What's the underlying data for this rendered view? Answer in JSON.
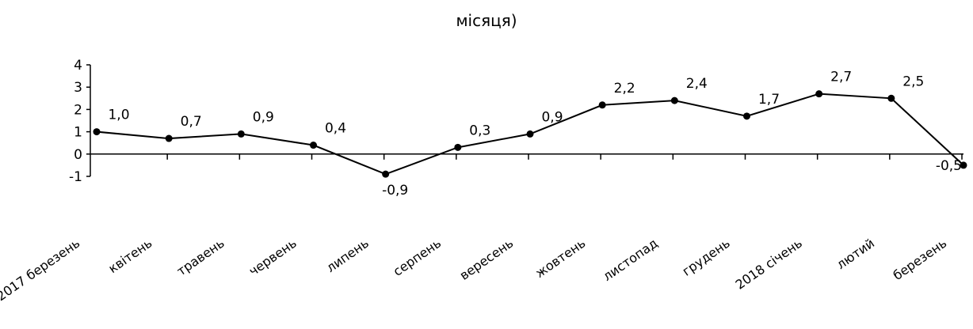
{
  "chart_data": {
    "type": "line",
    "title": "місяця)",
    "xlabel": "",
    "ylabel": "",
    "ylim": [
      -1,
      4
    ],
    "yticks": [
      4,
      3,
      2,
      1,
      0,
      -1
    ],
    "grid": false,
    "legend": "none",
    "categories": [
      "2017 березень",
      "квітень",
      "травень",
      "червень",
      "липень",
      "серпень",
      "вересень",
      "жовтень",
      "листопад",
      "грудень",
      "2018 січень",
      "лютий",
      "березень"
    ],
    "series": [
      {
        "values": [
          1.0,
          0.7,
          0.9,
          0.4,
          -0.9,
          0.3,
          0.9,
          2.2,
          2.4,
          1.7,
          2.7,
          2.5,
          -0.5
        ],
        "labels": [
          "1,0",
          "0,7",
          "0,9",
          "0,4",
          "-0,9",
          "0,3",
          "0,9",
          "2,2",
          "2,4",
          "1,7",
          "2,7",
          "2,5",
          "-0,5"
        ],
        "color": "#000000"
      }
    ]
  }
}
